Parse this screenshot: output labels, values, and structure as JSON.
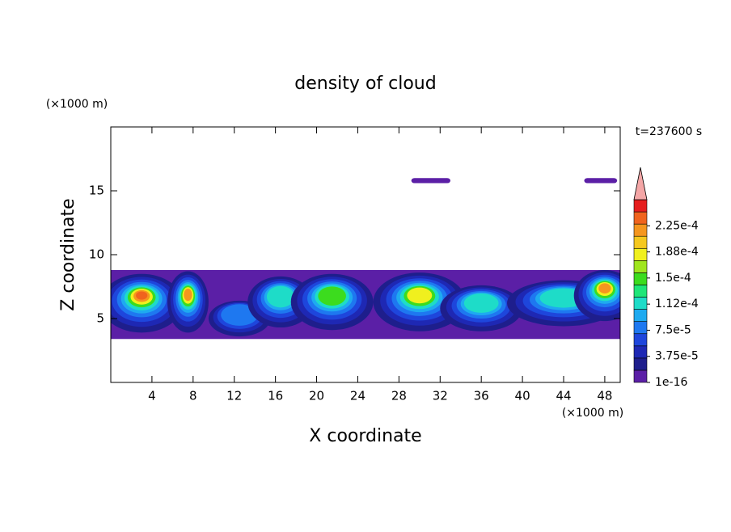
{
  "chart_data": {
    "type": "contour",
    "title": "density of cloud",
    "x_label": "X coordinate",
    "y_label": "Z coordinate",
    "x_unit": "(×1000 m)",
    "y_unit": "(×1000 m)",
    "time_label": "t=237600 s",
    "xlim": [
      0,
      49.5
    ],
    "ylim": [
      0,
      20
    ],
    "xticks": [
      4,
      8,
      12,
      16,
      20,
      24,
      28,
      32,
      36,
      40,
      44,
      48
    ],
    "yticks": [
      5,
      10,
      15
    ],
    "colorbar": {
      "lim": [
        0,
        0.0002625
      ],
      "colors": [
        "#5b1fa6",
        "#1e1e8c",
        "#1e28b4",
        "#1e46dc",
        "#1e78f0",
        "#1eaaf0",
        "#1edcc8",
        "#1ee678",
        "#3cdc1e",
        "#a0e61e",
        "#f0f01e",
        "#f5c81e",
        "#f5961e",
        "#f0641e",
        "#e61e1e"
      ],
      "extend_color": "#f4a6a6",
      "ticks": [
        {
          "value": 0,
          "label": "1e-16"
        },
        {
          "value": 3.75e-05,
          "label": "3.75e-5"
        },
        {
          "value": 7.5e-05,
          "label": "7.5e-5"
        },
        {
          "value": 0.0001125,
          "label": "1.12e-4"
        },
        {
          "value": 0.00015,
          "label": "1.5e-4"
        },
        {
          "value": 0.0001875,
          "label": "1.88e-4"
        },
        {
          "value": 0.000225,
          "label": "2.25e-4"
        }
      ]
    }
  }
}
